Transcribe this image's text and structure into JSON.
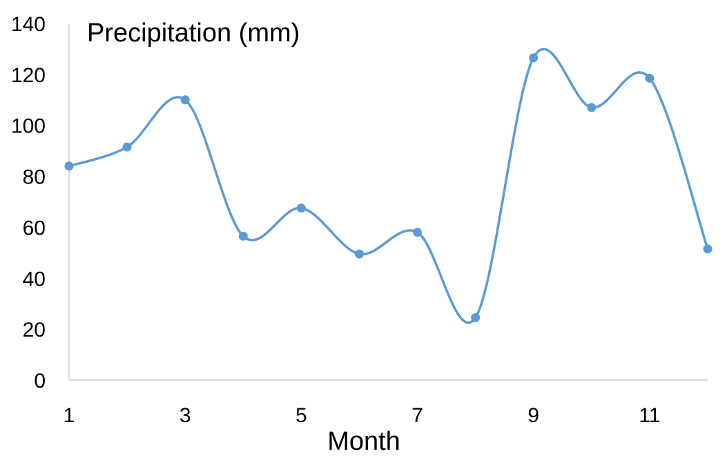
{
  "chart_data": {
    "type": "line",
    "title": "Precipitation (mm)",
    "xlabel": "Month",
    "ylabel": "",
    "x": [
      1,
      2,
      3,
      4,
      5,
      6,
      7,
      8,
      9,
      10,
      11,
      12
    ],
    "series": [
      {
        "values": [
          84,
          91.5,
          110,
          56.5,
          67.5,
          49.5,
          58,
          24.5,
          126.5,
          107,
          118.5,
          51.5
        ],
        "color": "#5b9bd5"
      }
    ],
    "xlim": [
      1,
      12
    ],
    "ylim": [
      0,
      140
    ],
    "y_ticks": [
      0,
      20,
      40,
      60,
      80,
      100,
      120,
      140
    ],
    "x_ticks": [
      1,
      3,
      5,
      7,
      9,
      11
    ],
    "smooth": true,
    "grid": false,
    "legend": "none"
  }
}
